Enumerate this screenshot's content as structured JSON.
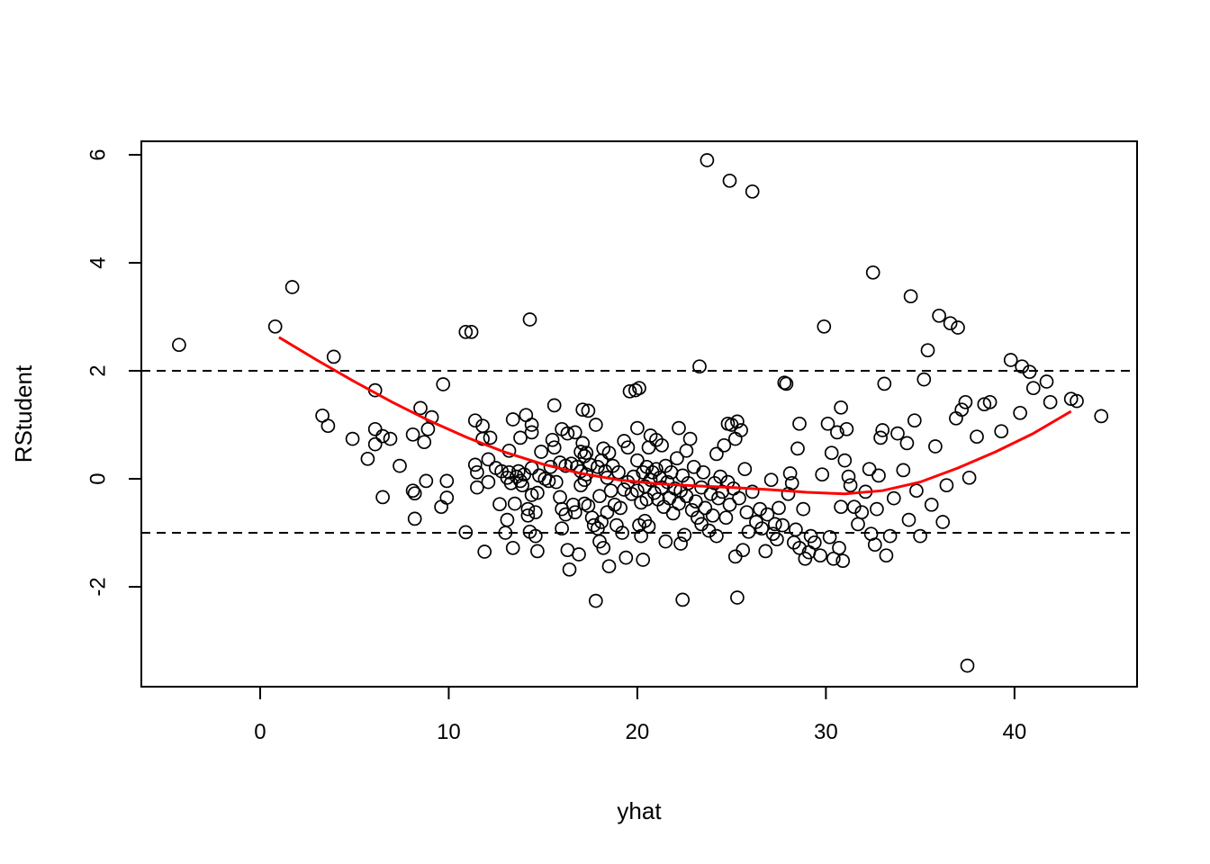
{
  "chart_data": {
    "type": "scatter",
    "title": "",
    "xlabel": "yhat",
    "ylabel": "RStudent",
    "xlim": [
      -6.3,
      46.5
    ],
    "ylim": [
      -3.85,
      6.25
    ],
    "xticks": [
      0,
      10,
      20,
      30,
      40
    ],
    "yticks": [
      -2,
      0,
      2,
      4,
      6
    ],
    "grid": false,
    "legend": "none",
    "reference_lines": [
      {
        "orientation": "horizontal",
        "y": 2,
        "style": "dashed",
        "color": "#000000"
      },
      {
        "orientation": "horizontal",
        "y": -1,
        "style": "dashed",
        "color": "#000000"
      }
    ],
    "smooth_curve": {
      "color": "#ff0000",
      "x": [
        1.0,
        3.0,
        5.0,
        7.0,
        9.0,
        11.0,
        13.0,
        15.0,
        17.0,
        19.0,
        21.0,
        23.0,
        25.0,
        27.0,
        29.0,
        31.0,
        33.0,
        35.0,
        37.0,
        39.0,
        41.0,
        43.0
      ],
      "y": [
        2.62,
        2.2,
        1.8,
        1.42,
        1.07,
        0.76,
        0.49,
        0.27,
        0.1,
        -0.02,
        -0.09,
        -0.13,
        -0.16,
        -0.2,
        -0.25,
        -0.28,
        -0.22,
        -0.06,
        0.2,
        0.5,
        0.84,
        1.25
      ]
    },
    "points": [
      [
        -4.3,
        2.48
      ],
      [
        0.8,
        2.82
      ],
      [
        1.7,
        3.55
      ],
      [
        3.3,
        1.17
      ],
      [
        3.6,
        0.98
      ],
      [
        3.9,
        2.26
      ],
      [
        4.9,
        0.74
      ],
      [
        5.7,
        0.37
      ],
      [
        6.1,
        1.64
      ],
      [
        6.1,
        0.92
      ],
      [
        6.1,
        0.64
      ],
      [
        6.5,
        -0.34
      ],
      [
        6.5,
        0.79
      ],
      [
        6.9,
        0.74
      ],
      [
        7.4,
        0.24
      ],
      [
        8.1,
        0.82
      ],
      [
        8.1,
        -0.22
      ],
      [
        8.2,
        -0.27
      ],
      [
        8.2,
        -0.74
      ],
      [
        8.5,
        1.31
      ],
      [
        8.7,
        0.68
      ],
      [
        8.8,
        -0.04
      ],
      [
        8.9,
        0.92
      ],
      [
        9.1,
        1.14
      ],
      [
        9.6,
        -0.52
      ],
      [
        9.7,
        1.75
      ],
      [
        9.9,
        -0.04
      ],
      [
        9.9,
        -0.35
      ],
      [
        10.9,
        2.72
      ],
      [
        10.9,
        -0.99
      ],
      [
        11.2,
        2.72
      ],
      [
        11.4,
        1.08
      ],
      [
        11.4,
        0.26
      ],
      [
        11.5,
        0.12
      ],
      [
        11.5,
        -0.16
      ],
      [
        11.8,
        0.74
      ],
      [
        11.8,
        0.98
      ],
      [
        11.9,
        -1.35
      ],
      [
        12.1,
        -0.06
      ],
      [
        12.1,
        0.36
      ],
      [
        12.2,
        0.76
      ],
      [
        12.5,
        0.2
      ],
      [
        12.7,
        -0.47
      ],
      [
        12.8,
        0.14
      ],
      [
        13.0,
        -1.0
      ],
      [
        13.1,
        -0.76
      ],
      [
        13.1,
        0.02
      ],
      [
        13.2,
        0.52
      ],
      [
        13.2,
        0.12
      ],
      [
        13.3,
        -0.08
      ],
      [
        13.4,
        1.1
      ],
      [
        13.4,
        -1.28
      ],
      [
        13.5,
        -0.46
      ],
      [
        13.6,
        0.04
      ],
      [
        13.7,
        0.14
      ],
      [
        13.8,
        0.76
      ],
      [
        13.8,
        -0.04
      ],
      [
        13.9,
        -0.12
      ],
      [
        14.0,
        0.08
      ],
      [
        14.1,
        1.18
      ],
      [
        14.2,
        -0.68
      ],
      [
        14.2,
        -0.56
      ],
      [
        14.3,
        2.95
      ],
      [
        14.3,
        -0.98
      ],
      [
        14.4,
        1.0
      ],
      [
        14.4,
        0.86
      ],
      [
        14.4,
        0.2
      ],
      [
        14.4,
        -0.3
      ],
      [
        14.6,
        -0.62
      ],
      [
        14.6,
        -1.06
      ],
      [
        14.7,
        -1.34
      ],
      [
        14.7,
        -0.26
      ],
      [
        14.8,
        0.06
      ],
      [
        14.9,
        0.5
      ],
      [
        15.1,
        0.0
      ],
      [
        15.3,
        -0.04
      ],
      [
        15.4,
        0.22
      ],
      [
        15.5,
        0.72
      ],
      [
        15.6,
        1.36
      ],
      [
        15.6,
        0.58
      ],
      [
        15.7,
        -0.06
      ],
      [
        15.9,
        0.3
      ],
      [
        15.9,
        -0.34
      ],
      [
        16.0,
        0.92
      ],
      [
        16.0,
        -0.56
      ],
      [
        16.0,
        -0.92
      ],
      [
        16.2,
        0.24
      ],
      [
        16.2,
        -0.66
      ],
      [
        16.3,
        0.84
      ],
      [
        16.3,
        -1.32
      ],
      [
        16.4,
        -1.68
      ],
      [
        16.5,
        0.28
      ],
      [
        16.6,
        -0.48
      ],
      [
        16.7,
        0.86
      ],
      [
        16.7,
        -0.62
      ],
      [
        16.8,
        0.22
      ],
      [
        16.9,
        -1.4
      ],
      [
        17.0,
        0.5
      ],
      [
        17.0,
        0.14
      ],
      [
        17.0,
        -0.12
      ],
      [
        17.1,
        1.28
      ],
      [
        17.1,
        0.66
      ],
      [
        17.2,
        0.42
      ],
      [
        17.2,
        -0.02
      ],
      [
        17.2,
        -0.46
      ],
      [
        17.3,
        0.48
      ],
      [
        17.3,
        0.08
      ],
      [
        17.4,
        1.26
      ],
      [
        17.4,
        -0.5
      ],
      [
        17.5,
        0.26
      ],
      [
        17.6,
        -0.72
      ],
      [
        17.7,
        -0.86
      ],
      [
        17.8,
        -2.26
      ],
      [
        17.8,
        1.0
      ],
      [
        17.9,
        0.22
      ],
      [
        17.9,
        -0.92
      ],
      [
        18.0,
        -1.16
      ],
      [
        18.0,
        -0.32
      ],
      [
        18.1,
        0.34
      ],
      [
        18.1,
        -0.8
      ],
      [
        18.2,
        -1.28
      ],
      [
        18.2,
        0.56
      ],
      [
        18.3,
        0.14
      ],
      [
        18.4,
        -0.62
      ],
      [
        18.4,
        0.02
      ],
      [
        18.5,
        -1.62
      ],
      [
        18.5,
        0.48
      ],
      [
        18.6,
        -0.22
      ],
      [
        18.7,
        0.24
      ],
      [
        18.8,
        -0.48
      ],
      [
        18.9,
        -0.86
      ],
      [
        19.0,
        0.12
      ],
      [
        19.1,
        -0.54
      ],
      [
        19.2,
        -1.0
      ],
      [
        19.3,
        0.7
      ],
      [
        19.3,
        -0.2
      ],
      [
        19.4,
        -1.46
      ],
      [
        19.5,
        0.58
      ],
      [
        19.5,
        -0.06
      ],
      [
        19.6,
        1.62
      ],
      [
        19.7,
        -0.28
      ],
      [
        19.8,
        0.04
      ],
      [
        19.9,
        1.64
      ],
      [
        20.0,
        0.94
      ],
      [
        20.0,
        0.34
      ],
      [
        20.0,
        -0.22
      ],
      [
        20.1,
        1.68
      ],
      [
        20.1,
        -0.86
      ],
      [
        20.2,
        -1.06
      ],
      [
        20.2,
        -0.44
      ],
      [
        20.3,
        -1.5
      ],
      [
        20.3,
        0.12
      ],
      [
        20.4,
        -0.14
      ],
      [
        20.4,
        -0.78
      ],
      [
        20.5,
        0.22
      ],
      [
        20.5,
        -0.38
      ],
      [
        20.6,
        0.58
      ],
      [
        20.6,
        -0.88
      ],
      [
        20.7,
        0.8
      ],
      [
        20.7,
        -0.02
      ],
      [
        20.8,
        0.12
      ],
      [
        20.9,
        -0.26
      ],
      [
        21.0,
        0.72
      ],
      [
        21.0,
        0.18
      ],
      [
        21.1,
        -0.38
      ],
      [
        21.2,
        0.02
      ],
      [
        21.3,
        -0.16
      ],
      [
        21.3,
        0.62
      ],
      [
        21.4,
        -0.52
      ],
      [
        21.5,
        0.24
      ],
      [
        21.5,
        -1.16
      ],
      [
        21.6,
        -0.06
      ],
      [
        21.7,
        -0.36
      ],
      [
        21.8,
        0.12
      ],
      [
        21.9,
        -0.64
      ],
      [
        22.0,
        -0.18
      ],
      [
        22.1,
        0.38
      ],
      [
        22.2,
        -0.46
      ],
      [
        22.2,
        0.94
      ],
      [
        22.3,
        -0.22
      ],
      [
        22.3,
        -1.2
      ],
      [
        22.4,
        -2.24
      ],
      [
        22.4,
        0.06
      ],
      [
        22.5,
        -1.04
      ],
      [
        22.6,
        0.52
      ],
      [
        22.6,
        -0.32
      ],
      [
        22.7,
        -0.08
      ],
      [
        22.8,
        0.74
      ],
      [
        22.9,
        -0.58
      ],
      [
        23.0,
        0.22
      ],
      [
        23.1,
        -0.42
      ],
      [
        23.2,
        -0.72
      ],
      [
        23.3,
        2.08
      ],
      [
        23.4,
        -0.16
      ],
      [
        23.4,
        -0.84
      ],
      [
        23.5,
        0.12
      ],
      [
        23.6,
        -0.54
      ],
      [
        23.7,
        5.9
      ],
      [
        23.8,
        -0.96
      ],
      [
        23.9,
        -0.28
      ],
      [
        24.0,
        -0.68
      ],
      [
        24.1,
        -0.08
      ],
      [
        24.2,
        0.46
      ],
      [
        24.2,
        -1.06
      ],
      [
        24.3,
        -0.36
      ],
      [
        24.4,
        0.04
      ],
      [
        24.5,
        -0.24
      ],
      [
        24.6,
        0.62
      ],
      [
        24.7,
        -0.72
      ],
      [
        24.8,
        1.02
      ],
      [
        24.8,
        -0.06
      ],
      [
        24.9,
        5.52
      ],
      [
        24.9,
        -0.48
      ],
      [
        25.0,
        1.0
      ],
      [
        25.1,
        -0.18
      ],
      [
        25.2,
        0.74
      ],
      [
        25.2,
        -1.44
      ],
      [
        25.3,
        1.06
      ],
      [
        25.3,
        -2.2
      ],
      [
        25.4,
        -0.36
      ],
      [
        25.5,
        0.9
      ],
      [
        25.6,
        -1.32
      ],
      [
        25.7,
        0.18
      ],
      [
        25.8,
        -0.62
      ],
      [
        25.9,
        -0.98
      ],
      [
        26.1,
        5.32
      ],
      [
        26.1,
        -0.24
      ],
      [
        26.3,
        -0.8
      ],
      [
        26.5,
        -0.56
      ],
      [
        26.6,
        -0.92
      ],
      [
        26.8,
        -1.34
      ],
      [
        26.9,
        -0.66
      ],
      [
        27.1,
        -0.02
      ],
      [
        27.2,
        -1.02
      ],
      [
        27.3,
        -0.84
      ],
      [
        27.4,
        -1.12
      ],
      [
        27.5,
        -0.54
      ],
      [
        27.7,
        -0.86
      ],
      [
        27.8,
        1.78
      ],
      [
        27.9,
        1.76
      ],
      [
        28.0,
        -0.28
      ],
      [
        28.1,
        0.1
      ],
      [
        28.2,
        -0.08
      ],
      [
        28.3,
        -1.18
      ],
      [
        28.4,
        -0.94
      ],
      [
        28.5,
        0.56
      ],
      [
        28.6,
        1.02
      ],
      [
        28.6,
        -1.28
      ],
      [
        28.8,
        -0.56
      ],
      [
        28.9,
        -1.48
      ],
      [
        29.1,
        -1.36
      ],
      [
        29.2,
        -1.06
      ],
      [
        29.4,
        -1.18
      ],
      [
        29.7,
        -1.42
      ],
      [
        29.8,
        0.08
      ],
      [
        29.9,
        2.82
      ],
      [
        30.1,
        1.02
      ],
      [
        30.2,
        -1.08
      ],
      [
        30.3,
        0.48
      ],
      [
        30.4,
        -1.48
      ],
      [
        30.6,
        0.86
      ],
      [
        30.7,
        -1.28
      ],
      [
        30.8,
        1.32
      ],
      [
        30.8,
        -0.52
      ],
      [
        30.9,
        -1.52
      ],
      [
        31.0,
        0.34
      ],
      [
        31.1,
        0.92
      ],
      [
        31.2,
        0.04
      ],
      [
        31.3,
        -0.12
      ],
      [
        31.5,
        -0.52
      ],
      [
        31.7,
        -0.84
      ],
      [
        31.9,
        -0.62
      ],
      [
        32.1,
        -0.24
      ],
      [
        32.3,
        0.18
      ],
      [
        32.4,
        -1.02
      ],
      [
        32.5,
        3.82
      ],
      [
        32.6,
        -1.22
      ],
      [
        32.7,
        -0.56
      ],
      [
        32.8,
        0.06
      ],
      [
        32.9,
        0.76
      ],
      [
        33.0,
        0.9
      ],
      [
        33.1,
        1.76
      ],
      [
        33.2,
        -1.42
      ],
      [
        33.4,
        -1.06
      ],
      [
        33.6,
        -0.36
      ],
      [
        33.8,
        0.84
      ],
      [
        34.1,
        0.16
      ],
      [
        34.3,
        0.66
      ],
      [
        34.4,
        -0.76
      ],
      [
        34.5,
        3.38
      ],
      [
        34.7,
        1.08
      ],
      [
        34.8,
        -0.22
      ],
      [
        35.0,
        -1.06
      ],
      [
        35.2,
        1.84
      ],
      [
        35.4,
        2.38
      ],
      [
        35.6,
        -0.48
      ],
      [
        35.8,
        0.6
      ],
      [
        36.0,
        3.02
      ],
      [
        36.2,
        -0.8
      ],
      [
        36.4,
        -0.12
      ],
      [
        36.6,
        2.88
      ],
      [
        36.9,
        1.12
      ],
      [
        37.0,
        2.8
      ],
      [
        37.2,
        1.28
      ],
      [
        37.4,
        1.42
      ],
      [
        37.5,
        -3.46
      ],
      [
        37.6,
        0.02
      ],
      [
        38.0,
        0.78
      ],
      [
        38.4,
        1.38
      ],
      [
        38.7,
        1.42
      ],
      [
        39.3,
        0.88
      ],
      [
        39.8,
        2.2
      ],
      [
        40.3,
        1.22
      ],
      [
        40.4,
        2.08
      ],
      [
        40.8,
        1.98
      ],
      [
        41.0,
        1.68
      ],
      [
        41.7,
        1.8
      ],
      [
        41.9,
        1.42
      ],
      [
        43.0,
        1.48
      ],
      [
        43.3,
        1.44
      ],
      [
        44.6,
        1.16
      ]
    ]
  }
}
